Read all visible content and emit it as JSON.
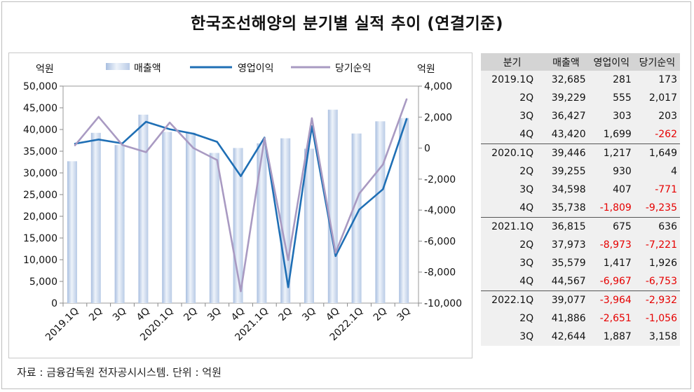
{
  "title": "한국조선해양의 분기별 실적 추이 (연결기준)",
  "source": "자료 : 금융감독원 전자공시시스템. 단위 : 억원",
  "chart_data": {
    "type": "bar+line",
    "left_axis_label": "억원",
    "right_axis_label": "억원",
    "categories": [
      "2019.1Q",
      "2Q",
      "3Q",
      "4Q",
      "2020.1Q",
      "2Q",
      "3Q",
      "4Q",
      "2021.1Q",
      "2Q",
      "3Q",
      "4Q",
      "2022.1Q",
      "2Q",
      "3Q"
    ],
    "left_ticks": [
      "50,000",
      "45,000",
      "40,000",
      "35,000",
      "30,000",
      "25,000",
      "20,000",
      "15,000",
      "10,000",
      "5,000",
      "0"
    ],
    "right_ticks": [
      "4,000",
      "2,000",
      "0",
      "-2,000",
      "-4,000",
      "-6,000",
      "-8,000",
      "-10,000"
    ],
    "ylim_left": [
      0,
      50000
    ],
    "ylim_right": [
      -10000,
      4000
    ],
    "series": [
      {
        "name": "매출액",
        "type": "bar",
        "axis": "left",
        "color": "#c9d7ec",
        "values": [
          32685,
          39229,
          36427,
          43420,
          39446,
          39255,
          34598,
          35738,
          36815,
          37973,
          35579,
          44567,
          39077,
          41886,
          42644
        ]
      },
      {
        "name": "영업이익",
        "type": "line",
        "axis": "right",
        "color": "#1f6fb5",
        "values": [
          281,
          555,
          303,
          1699,
          1217,
          930,
          407,
          -1809,
          675,
          -8973,
          1417,
          -6967,
          -3964,
          -2651,
          1887
        ]
      },
      {
        "name": "당기순익",
        "type": "line",
        "axis": "right",
        "color": "#a99ac2",
        "values": [
          173,
          2017,
          203,
          -262,
          1649,
          4,
          -771,
          -9235,
          636,
          -7221,
          1926,
          -6753,
          -2932,
          -1056,
          3158
        ]
      }
    ]
  },
  "table": {
    "headers": [
      "분기",
      "매출액",
      "영업이익",
      "당기순익"
    ],
    "rows": [
      {
        "q": "2019.1Q",
        "sales": "32,685",
        "op": "281",
        "net": "173",
        "op_neg": false,
        "net_neg": false,
        "group_start": false
      },
      {
        "q": "2Q",
        "sales": "39,229",
        "op": "555",
        "net": "2,017",
        "op_neg": false,
        "net_neg": false,
        "group_start": false
      },
      {
        "q": "3Q",
        "sales": "36,427",
        "op": "303",
        "net": "203",
        "op_neg": false,
        "net_neg": false,
        "group_start": false
      },
      {
        "q": "4Q",
        "sales": "43,420",
        "op": "1,699",
        "net": "-262",
        "op_neg": false,
        "net_neg": true,
        "group_start": false
      },
      {
        "q": "2020.1Q",
        "sales": "39,446",
        "op": "1,217",
        "net": "1,649",
        "op_neg": false,
        "net_neg": false,
        "group_start": true
      },
      {
        "q": "2Q",
        "sales": "39,255",
        "op": "930",
        "net": "4",
        "op_neg": false,
        "net_neg": false,
        "group_start": false
      },
      {
        "q": "3Q",
        "sales": "34,598",
        "op": "407",
        "net": "-771",
        "op_neg": false,
        "net_neg": true,
        "group_start": false
      },
      {
        "q": "4Q",
        "sales": "35,738",
        "op": "-1,809",
        "net": "-9,235",
        "op_neg": true,
        "net_neg": true,
        "group_start": false
      },
      {
        "q": "2021.1Q",
        "sales": "36,815",
        "op": "675",
        "net": "636",
        "op_neg": false,
        "net_neg": false,
        "group_start": true
      },
      {
        "q": "2Q",
        "sales": "37,973",
        "op": "-8,973",
        "net": "-7,221",
        "op_neg": true,
        "net_neg": true,
        "group_start": false
      },
      {
        "q": "3Q",
        "sales": "35,579",
        "op": "1,417",
        "net": "1,926",
        "op_neg": false,
        "net_neg": false,
        "group_start": false
      },
      {
        "q": "4Q",
        "sales": "44,567",
        "op": "-6,967",
        "net": "-6,753",
        "op_neg": true,
        "net_neg": true,
        "group_start": false
      },
      {
        "q": "2022.1Q",
        "sales": "39,077",
        "op": "-3,964",
        "net": "-2,932",
        "op_neg": true,
        "net_neg": true,
        "group_start": true
      },
      {
        "q": "2Q",
        "sales": "41,886",
        "op": "-2,651",
        "net": "-1,056",
        "op_neg": true,
        "net_neg": true,
        "group_start": false
      },
      {
        "q": "3Q",
        "sales": "42,644",
        "op": "1,887",
        "net": "3,158",
        "op_neg": false,
        "net_neg": false,
        "group_start": false
      }
    ]
  }
}
